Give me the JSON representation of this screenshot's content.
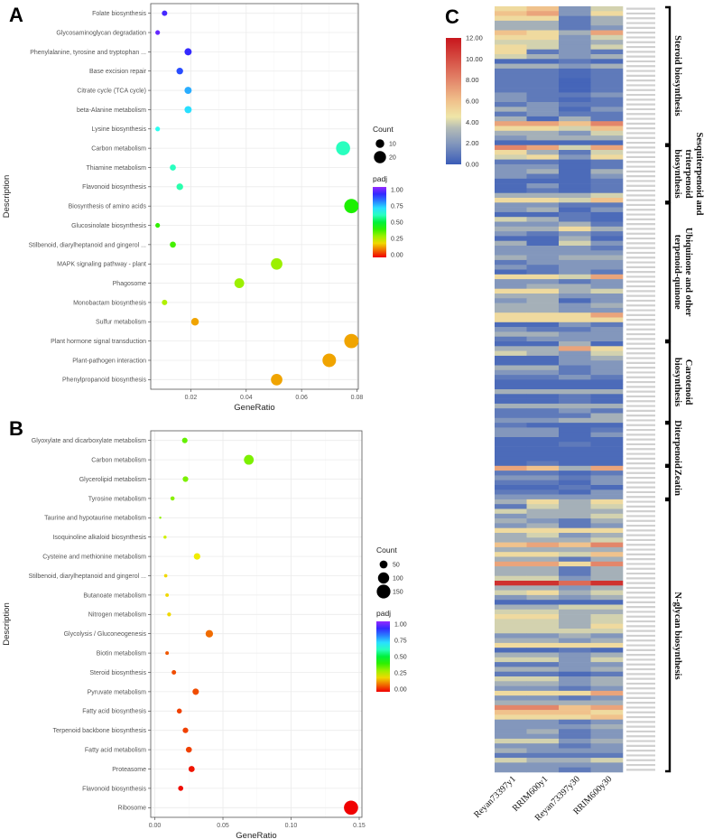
{
  "panels": {
    "a": "A",
    "b": "B",
    "c": "C"
  },
  "chart_data": [
    {
      "type": "scatter",
      "panel": "A",
      "xlabel": "GeneRatio",
      "ylabel": "Description",
      "xlim": [
        0.0055,
        0.0805
      ],
      "xticks": [
        "0.02",
        "0.04",
        "0.06",
        "0.08"
      ],
      "xtick_values": [
        0.02,
        0.04,
        0.06,
        0.08
      ],
      "grid": true,
      "legend": {
        "size_title": "Count",
        "size_values": [
          "10",
          "20"
        ],
        "color_title": "padj",
        "color_ticks": [
          "1.00",
          "0.75",
          "0.50",
          "0.25",
          "0.00"
        ],
        "placement": "right"
      },
      "categories": [
        "Folate biosynthesis",
        "Glycosaminoglycan degradation",
        "Phenylalanine, tyrosine and tryptophan ...",
        "Base excision repair",
        "Citrate cycle (TCA cycle)",
        "beta-Alanine metabolism",
        "Lysine biosynthesis",
        "Carbon metabolism",
        "Thiamine metabolism",
        "Flavonoid biosynthesis",
        "Biosynthesis of amino acids",
        "Glucosinolate biosynthesis",
        "Stilbenoid, diarylheptanoid and gingerol ...",
        "MAPK signaling pathway - plant",
        "Phagosome",
        "Monobactam biosynthesis",
        "Sulfur metabolism",
        "Plant hormone signal transduction",
        "Plant-pathogen interaction",
        "Phenylpropanoid biosynthesis"
      ],
      "gene_ratio": [
        0.0105,
        0.008,
        0.019,
        0.016,
        0.019,
        0.019,
        0.008,
        0.075,
        0.0135,
        0.016,
        0.078,
        0.008,
        0.0135,
        0.051,
        0.0375,
        0.0105,
        0.0215,
        0.078,
        0.07,
        0.051
      ],
      "count": [
        4,
        3,
        7,
        6,
        7,
        7,
        3,
        27,
        5,
        6,
        28,
        3,
        5,
        18,
        13,
        4,
        8,
        28,
        25,
        18
      ],
      "padj": [
        0.92,
        0.95,
        0.9,
        0.85,
        0.75,
        0.7,
        0.65,
        0.6,
        0.6,
        0.58,
        0.42,
        0.4,
        0.38,
        0.3,
        0.3,
        0.28,
        0.15,
        0.15,
        0.15,
        0.15
      ]
    },
    {
      "type": "scatter",
      "panel": "B",
      "xlabel": "GeneRatio",
      "ylabel": "Description",
      "xlim": [
        -0.003,
        0.152
      ],
      "xticks": [
        "0.00",
        "0.05",
        "0.10",
        "0.15"
      ],
      "xtick_values": [
        0.0,
        0.05,
        0.1,
        0.15
      ],
      "grid": true,
      "legend": {
        "size_title": "Count",
        "size_values": [
          "50",
          "100",
          "150"
        ],
        "color_title": "padj",
        "color_ticks": [
          "1.00",
          "0.75",
          "0.50",
          "0.25",
          "0.00"
        ],
        "placement": "right"
      },
      "categories": [
        "Glyoxylate and dicarboxylate metabolism",
        "Carbon metabolism",
        "Glycerolipid metabolism",
        "Tyrosine metabolism",
        "Taurine and hypotaurine metabolism",
        "Isoquinoline alkaloid biosynthesis",
        "Cysteine and methionine metabolism",
        "Stilbenoid, diarylheptanoid and gingerol ...",
        "Butanoate metabolism",
        "Nitrogen metabolism",
        "Glycolysis / Gluconeogenesis",
        "Biotin metabolism",
        "Steroid biosynthesis",
        "Pyruvate metabolism",
        "Fatty acid biosynthesis",
        "Terpenoid backbone biosynthesis",
        "Fatty acid metabolism",
        "Proteasome",
        "Flavonoid biosynthesis",
        "Ribosome"
      ],
      "gene_ratio": [
        0.022,
        0.069,
        0.0225,
        0.013,
        0.004,
        0.0075,
        0.031,
        0.008,
        0.009,
        0.0105,
        0.04,
        0.009,
        0.014,
        0.03,
        0.018,
        0.0225,
        0.025,
        0.027,
        0.019,
        0.144
      ],
      "count": [
        24,
        77,
        25,
        14,
        4,
        8,
        34,
        9,
        10,
        12,
        44,
        10,
        16,
        33,
        20,
        25,
        28,
        30,
        21,
        160
      ],
      "padj": [
        0.35,
        0.33,
        0.33,
        0.32,
        0.31,
        0.25,
        0.22,
        0.2,
        0.2,
        0.2,
        0.1,
        0.08,
        0.07,
        0.07,
        0.06,
        0.06,
        0.06,
        0.02,
        0.01,
        0.0
      ]
    },
    {
      "type": "heatmap",
      "panel": "C",
      "columns": [
        "Reyan73397y1",
        "RRIM600y1",
        "Reyan73397y30",
        "RRIM600y30"
      ],
      "colorbar": {
        "min": 0,
        "max": 12,
        "ticks": [
          "12.00",
          "10.00",
          "8.00",
          "6.00",
          "4.00",
          "2.00",
          "0.00"
        ],
        "colors": [
          "#3a5cb8",
          "#8397bc",
          "#b6bdb6",
          "#efe6a8",
          "#f0c28c",
          "#e3866a",
          "#c8161d"
        ]
      },
      "groups": [
        {
          "label": "Steroid biosynthesis",
          "lines": [
            "Steroid biosynthesis"
          ],
          "start": 0,
          "end": 28
        },
        {
          "label": "Sesquiterpenoid and triterpenoid biosynthesis",
          "lines": [
            "Sesquiterpenoid and",
            "triterpenoid",
            "biosynthesis"
          ],
          "start": 29,
          "end": 40
        },
        {
          "label": "Ubiquinone and other terpenoid-quinone",
          "lines": [
            "Ubiquinone and other",
            "terpenoid-quinone"
          ],
          "start": 41,
          "end": 69
        },
        {
          "label": "Carotenoid biosynthesis",
          "lines": [
            "Carotenoid",
            "biosynthesis"
          ],
          "start": 70,
          "end": 86
        },
        {
          "label": "Diterpenoid",
          "lines": [
            "Diterpenoid"
          ],
          "start": 87,
          "end": 95
        },
        {
          "label": "Zeatin",
          "lines": [
            "Zeatin"
          ],
          "start": 96,
          "end": 102
        },
        {
          "label": "N-glycan biosynthesis",
          "lines": [
            "N-glycan biosynthesis"
          ],
          "start": 103,
          "end": 159
        }
      ],
      "values": [
        [
          5,
          6,
          2,
          4
        ],
        [
          6,
          7,
          2,
          5
        ],
        [
          5,
          5,
          1,
          3
        ],
        [
          3,
          3,
          1,
          3
        ],
        [
          3,
          3,
          1,
          2
        ],
        [
          6,
          5,
          3,
          7
        ],
        [
          5,
          5,
          2,
          4
        ],
        [
          4,
          4,
          2,
          3
        ],
        [
          5,
          4,
          2,
          4
        ],
        [
          5,
          1,
          2,
          1
        ],
        [
          4,
          3,
          2,
          3
        ],
        [
          0.5,
          0.5,
          1,
          0.5
        ],
        [
          3,
          3,
          2,
          3
        ],
        [
          1,
          1,
          0.5,
          1
        ],
        [
          1,
          1,
          0.5,
          1
        ],
        [
          1,
          1,
          0.3,
          1
        ],
        [
          1,
          1,
          0.3,
          1
        ],
        [
          1,
          1,
          0.3,
          1
        ],
        [
          2,
          1,
          1,
          2
        ],
        [
          2,
          1,
          0.5,
          1
        ],
        [
          1,
          2,
          1,
          1
        ],
        [
          3,
          2,
          0.5,
          2
        ],
        [
          1,
          2,
          1,
          1
        ],
        [
          3,
          0.5,
          3,
          1
        ],
        [
          7,
          7,
          6,
          8
        ],
        [
          5,
          5,
          4,
          6
        ],
        [
          3,
          3,
          2,
          4
        ],
        [
          2,
          3,
          3,
          3
        ],
        [
          0.5,
          0.5,
          0.5,
          0.5
        ],
        [
          8,
          7,
          4,
          7
        ],
        [
          5,
          3,
          1,
          4
        ],
        [
          4,
          5,
          2,
          5
        ],
        [
          1,
          1,
          0.5,
          1
        ],
        [
          2,
          2,
          0.5,
          1
        ],
        [
          2,
          3,
          0.5,
          3
        ],
        [
          2,
          1,
          0.5,
          2
        ],
        [
          0.5,
          0.5,
          0.5,
          1
        ],
        [
          0.5,
          2,
          0.5,
          1
        ],
        [
          0.5,
          1,
          0.5,
          1
        ],
        [
          3,
          3,
          3,
          4
        ],
        [
          5,
          5,
          4,
          6
        ],
        [
          2,
          2,
          1,
          1
        ],
        [
          2,
          3,
          0.5,
          2
        ],
        [
          0.5,
          0.5,
          1,
          0.5
        ],
        [
          4,
          3,
          1,
          0.5
        ],
        [
          2,
          2,
          3,
          1
        ],
        [
          3,
          3,
          5,
          3
        ],
        [
          2,
          1,
          2,
          1
        ],
        [
          0.5,
          0.5,
          3,
          0.5
        ],
        [
          3,
          0.5,
          4,
          2
        ],
        [
          2,
          2,
          2,
          1
        ],
        [
          2,
          2,
          2,
          2
        ],
        [
          3,
          2,
          3,
          3
        ],
        [
          1,
          2,
          2,
          2
        ],
        [
          2,
          1,
          2,
          2
        ],
        [
          0.5,
          1,
          2,
          1
        ],
        [
          5,
          5,
          4,
          7
        ],
        [
          2,
          2,
          1,
          2
        ],
        [
          2,
          3,
          3,
          2
        ],
        [
          5,
          5,
          3,
          4
        ],
        [
          3,
          3,
          2,
          2
        ],
        [
          2,
          3,
          0.5,
          2
        ],
        [
          3,
          3,
          2,
          3
        ],
        [
          3,
          3,
          2,
          2
        ],
        [
          5,
          5,
          5,
          7
        ],
        [
          5,
          5,
          5,
          5
        ],
        [
          0.5,
          0.5,
          2,
          1
        ],
        [
          2,
          1,
          1,
          2
        ],
        [
          3,
          3,
          2,
          2
        ],
        [
          1,
          2,
          2,
          2
        ],
        [
          0.5,
          0.5,
          3,
          0.5
        ],
        [
          3,
          3,
          7,
          5
        ],
        [
          4,
          3,
          2,
          4
        ],
        [
          0.5,
          0.5,
          2,
          3
        ],
        [
          0.5,
          0.5,
          2,
          2
        ],
        [
          3,
          3,
          1,
          2
        ],
        [
          2,
          2,
          1,
          2
        ],
        [
          1,
          1,
          2,
          1
        ],
        [
          0.5,
          0.5,
          0.5,
          0.5
        ],
        [
          0.5,
          0.5,
          0.5,
          0.5
        ],
        [
          3,
          3,
          3,
          3
        ],
        [
          0.5,
          0.5,
          1,
          0.5
        ],
        [
          0.5,
          0.5,
          1,
          0.5
        ],
        [
          3,
          3,
          3,
          3
        ],
        [
          1,
          1,
          2,
          1
        ],
        [
          1,
          1,
          1,
          3
        ],
        [
          2,
          2,
          3,
          3
        ],
        [
          1,
          0.5,
          0.5,
          0.5
        ],
        [
          2,
          2,
          0.5,
          1
        ],
        [
          2,
          2,
          0.5,
          2
        ],
        [
          0.5,
          0.5,
          0.5,
          0.5
        ],
        [
          0.5,
          0.5,
          1,
          0.5
        ],
        [
          0.5,
          0.5,
          0.5,
          0.5
        ],
        [
          0.5,
          0.5,
          0.5,
          0.5
        ],
        [
          0.5,
          0.5,
          0.5,
          0.5
        ],
        [
          0.5,
          1,
          0.5,
          0.5
        ],
        [
          7,
          6,
          3,
          7
        ],
        [
          1,
          1,
          0.5,
          1
        ],
        [
          2,
          2,
          1,
          2
        ],
        [
          1,
          1,
          0.5,
          2
        ],
        [
          0.5,
          0.5,
          1,
          0.5
        ],
        [
          1,
          1,
          0.5,
          2
        ],
        [
          2,
          2,
          2,
          2
        ],
        [
          3,
          5,
          3,
          5
        ],
        [
          1,
          4,
          3,
          4
        ],
        [
          4,
          3,
          3,
          3
        ],
        [
          2,
          3,
          3,
          4
        ],
        [
          3,
          2,
          1,
          3
        ],
        [
          2,
          3,
          1,
          2
        ],
        [
          5,
          5,
          5,
          5
        ],
        [
          3,
          4,
          2,
          3
        ],
        [
          3,
          3,
          3,
          4
        ],
        [
          6,
          7,
          6,
          8
        ],
        [
          3,
          3,
          3,
          3
        ],
        [
          5,
          5,
          4,
          6
        ],
        [
          3,
          3,
          1,
          3
        ],
        [
          7,
          7,
          5,
          8
        ],
        [
          3,
          3,
          1,
          3
        ],
        [
          3,
          3,
          1,
          3
        ],
        [
          4,
          4,
          2,
          3
        ],
        [
          11,
          11,
          9,
          11
        ],
        [
          3,
          3,
          2,
          3
        ],
        [
          4,
          5,
          3,
          4
        ],
        [
          2,
          3,
          2,
          3
        ],
        [
          0.5,
          0.5,
          0.5,
          0.5
        ],
        [
          3,
          3,
          4,
          4
        ],
        [
          4,
          4,
          3,
          3
        ],
        [
          5,
          5,
          3,
          4
        ],
        [
          4,
          4,
          3,
          4
        ],
        [
          4,
          4,
          3,
          5
        ],
        [
          4,
          4,
          4,
          4
        ],
        [
          2,
          2,
          3,
          2
        ],
        [
          3,
          3,
          2,
          3
        ],
        [
          5,
          5,
          5,
          5
        ],
        [
          0.5,
          0.5,
          1,
          0.5
        ],
        [
          3,
          3,
          2,
          3
        ],
        [
          4,
          4,
          2,
          4
        ],
        [
          1,
          1,
          2,
          2
        ],
        [
          3,
          3,
          2,
          3
        ],
        [
          1,
          1,
          0.5,
          1
        ],
        [
          4,
          4,
          2,
          3
        ],
        [
          3,
          3,
          2,
          3
        ],
        [
          2,
          2,
          1,
          2
        ],
        [
          5,
          5,
          5,
          7
        ],
        [
          2,
          2,
          1,
          2
        ],
        [
          3,
          3,
          3,
          3
        ],
        [
          8,
          8,
          6,
          7
        ],
        [
          6,
          6,
          6,
          5
        ],
        [
          5,
          5,
          5,
          6
        ],
        [
          2,
          2,
          1,
          2
        ],
        [
          2,
          2,
          2,
          3
        ],
        [
          2,
          3,
          1,
          2
        ],
        [
          2,
          2,
          1,
          2
        ],
        [
          4,
          4,
          2,
          3
        ],
        [
          2,
          2,
          1,
          2
        ],
        [
          3,
          2,
          2,
          2
        ],
        [
          1,
          1,
          1,
          1
        ],
        [
          4,
          3,
          3,
          4
        ],
        [
          2,
          2,
          2,
          2
        ],
        [
          2,
          2,
          1,
          2
        ]
      ]
    }
  ]
}
